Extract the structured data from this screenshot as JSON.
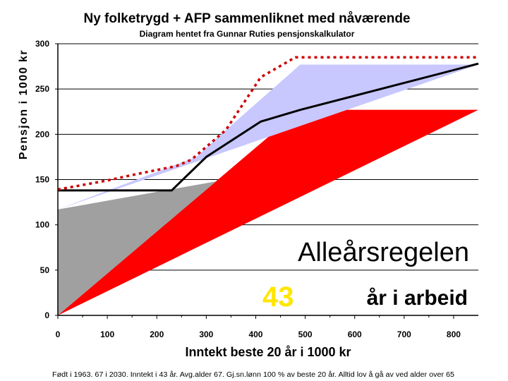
{
  "chart_data": {
    "type": "area",
    "title": "Ny folketrygd + AFP sammenliknet med nåværende",
    "subtitle": "Diagram hentet fra Gunnar Ruties pensjonskalkulator",
    "xlabel": "Inntekt beste 20 år i 1000 kr",
    "ylabel": "Pensjon i 1000 kr",
    "footnote": "Født i 1963. 67 i 2030. Inntekt i 43 år. Avg.alder 67. Gj.sn.lønn 100 % av beste 20 år. Alltid lov å gå av ved alder over 65",
    "annotation": {
      "line1": "Alleårsregelen",
      "number": "43",
      "text": "år i arbeid"
    },
    "xlim": [
      0,
      850
    ],
    "ylim": [
      0,
      300
    ],
    "x_ticks": [
      0,
      100,
      200,
      300,
      400,
      500,
      600,
      700,
      800
    ],
    "y_ticks": [
      0,
      50,
      100,
      150,
      200,
      250,
      300
    ],
    "grid": "horizontal",
    "colors": {
      "red_area": "#ff0000",
      "grey_area": "#a0a0a0",
      "lavender_area": "#c8c8ff",
      "line": "#000000",
      "dotted": "#cc0000"
    },
    "series": [
      {
        "type": "area",
        "color": "#ff0000",
        "x": [
          0,
          490,
          850
        ],
        "y": [
          0,
          227,
          227
        ]
      },
      {
        "type": "area",
        "color": "#a0a0a0",
        "x": [
          0,
          320,
          0
        ],
        "y": [
          117,
          148,
          0
        ]
      },
      {
        "type": "area",
        "color": "#c8c8ff",
        "x": [
          0,
          280,
          330,
          490,
          850
        ],
        "y": [
          117,
          175,
          200,
          277,
          277
        ]
      },
      {
        "type": "line",
        "color": "#000000",
        "x": [
          0,
          230,
          300,
          410,
          490,
          850
        ],
        "y": [
          138,
          138,
          175,
          214,
          227,
          278
        ]
      },
      {
        "type": "dotted",
        "color": "#cc0000",
        "x": [
          0,
          100,
          150,
          240,
          270,
          340,
          410,
          480,
          850
        ],
        "y": [
          139,
          149,
          155,
          165,
          172,
          205,
          263,
          285,
          285
        ]
      }
    ]
  }
}
